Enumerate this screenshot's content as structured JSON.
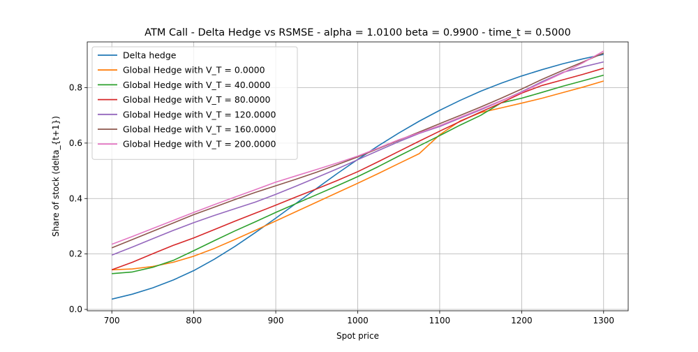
{
  "chart_data": {
    "type": "line",
    "title": "ATM Call - Delta Hedge vs RSMSE - alpha = 1.0100 beta = 0.9900 - time_t = 0.5000",
    "xlabel": "Spot price",
    "ylabel": "Share of stock (delta_{t+1})",
    "xlim": [
      670,
      1330
    ],
    "ylim": [
      -0.005,
      0.965
    ],
    "xticks": [
      700,
      800,
      900,
      1000,
      1100,
      1200,
      1300
    ],
    "yticks": [
      0.0,
      0.2,
      0.4,
      0.6,
      0.8
    ],
    "xtick_labels": [
      "700",
      "800",
      "900",
      "1000",
      "1100",
      "1200",
      "1300"
    ],
    "ytick_labels": [
      "0.0",
      "0.2",
      "0.4",
      "0.6",
      "0.8"
    ],
    "grid": true,
    "legend_position": "top-left",
    "x": [
      700,
      725,
      750,
      775,
      800,
      825,
      850,
      875,
      900,
      925,
      950,
      975,
      1000,
      1025,
      1050,
      1075,
      1100,
      1125,
      1150,
      1175,
      1200,
      1225,
      1250,
      1275,
      1300
    ],
    "series": [
      {
        "name": "Delta hedge",
        "color": "#1f77b4",
        "values": [
          0.037,
          0.055,
          0.078,
          0.106,
          0.14,
          0.181,
          0.227,
          0.277,
          0.329,
          0.383,
          0.437,
          0.49,
          0.541,
          0.59,
          0.636,
          0.679,
          0.718,
          0.754,
          0.787,
          0.816,
          0.842,
          0.865,
          0.886,
          0.904,
          0.92
        ]
      },
      {
        "name": "Global Hedge with V_T = 0.0000",
        "color": "#ff7f0e",
        "values": [
          0.143,
          0.146,
          0.155,
          0.17,
          0.192,
          0.22,
          0.252,
          0.285,
          0.319,
          0.353,
          0.387,
          0.421,
          0.455,
          0.49,
          0.526,
          0.562,
          0.63,
          0.68,
          0.71,
          0.727,
          0.744,
          0.762,
          0.782,
          0.802,
          0.824
        ]
      },
      {
        "name": "Global Hedge with V_T = 40.0000",
        "color": "#2ca02c",
        "values": [
          0.129,
          0.135,
          0.152,
          0.177,
          0.212,
          0.248,
          0.283,
          0.316,
          0.35,
          0.382,
          0.414,
          0.446,
          0.479,
          0.515,
          0.553,
          0.59,
          0.627,
          0.665,
          0.7,
          0.745,
          0.762,
          0.783,
          0.805,
          0.825,
          0.845
        ]
      },
      {
        "name": "Global Hedge with V_T = 80.0000",
        "color": "#d62728",
        "values": [
          0.143,
          0.17,
          0.201,
          0.231,
          0.258,
          0.288,
          0.318,
          0.347,
          0.376,
          0.406,
          0.435,
          0.465,
          0.497,
          0.533,
          0.57,
          0.607,
          0.643,
          0.678,
          0.712,
          0.745,
          0.78,
          0.808,
          0.828,
          0.848,
          0.87
        ]
      },
      {
        "name": "Global Hedge with V_T = 120.0000",
        "color": "#9467bd",
        "values": [
          0.196,
          0.225,
          0.255,
          0.285,
          0.313,
          0.339,
          0.363,
          0.387,
          0.415,
          0.445,
          0.476,
          0.507,
          0.54,
          0.573,
          0.605,
          0.635,
          0.66,
          0.69,
          0.72,
          0.752,
          0.785,
          0.822,
          0.855,
          0.875,
          0.893
        ]
      },
      {
        "name": "Global Hedge with V_T = 160.0000",
        "color": "#8c564b",
        "values": [
          0.222,
          0.252,
          0.282,
          0.312,
          0.342,
          0.369,
          0.396,
          0.422,
          0.446,
          0.47,
          0.495,
          0.522,
          0.55,
          0.58,
          0.61,
          0.64,
          0.67,
          0.7,
          0.73,
          0.762,
          0.795,
          0.83,
          0.862,
          0.893,
          0.925
        ]
      },
      {
        "name": "Global Hedge with V_T = 200.0000",
        "color": "#e377c2",
        "values": [
          0.235,
          0.263,
          0.292,
          0.321,
          0.35,
          0.378,
          0.405,
          0.432,
          0.459,
          0.482,
          0.505,
          0.528,
          0.553,
          0.582,
          0.612,
          0.637,
          0.663,
          0.693,
          0.723,
          0.753,
          0.783,
          0.818,
          0.853,
          0.89,
          0.932
        ]
      }
    ]
  }
}
